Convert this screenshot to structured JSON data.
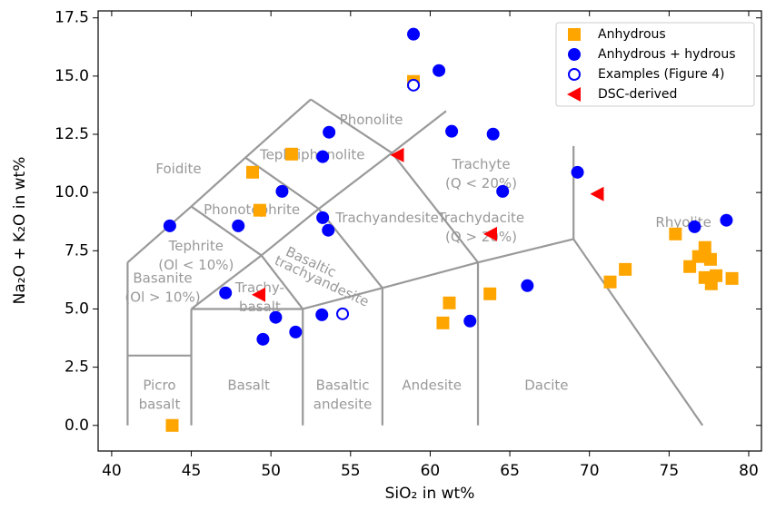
{
  "chart_data": {
    "type": "scatter",
    "x_label": "SiO₂ in wt%",
    "y_label": "Na₂O + K₂O in wt%",
    "xlim": [
      39.15,
      80.8
    ],
    "ylim": [
      -1.1,
      17.8
    ],
    "xticks": [
      40,
      45,
      50,
      55,
      60,
      65,
      70,
      75,
      80
    ],
    "yticks": [
      {
        "value": 0,
        "label": "0.0"
      },
      {
        "value": 2.5,
        "label": "2.5"
      },
      {
        "value": 5,
        "label": "5.0"
      },
      {
        "value": 7.5,
        "label": "7.5"
      },
      {
        "value": 10,
        "label": "10.0"
      },
      {
        "value": 12.5,
        "label": "12.5"
      },
      {
        "value": 15,
        "label": "15.0"
      },
      {
        "value": 17.5,
        "label": "17.5"
      }
    ],
    "legend": "upper right",
    "annotations": [
      [
        "Foidite"
      ],
      [
        "Phonolite"
      ],
      [
        "Tephriphonolite"
      ],
      [
        "Phonotephrite"
      ],
      [
        "Tephrite",
        "(Ol < 10%)"
      ],
      [
        "Basanite",
        "(Ol > 10%)"
      ],
      [
        "Trachy-",
        "basalt"
      ],
      [
        "Basaltic",
        "trachyandesite"
      ],
      [
        "Trachyandesite"
      ],
      [
        "Trachyte",
        "(Q < 20%)"
      ],
      [
        "Trachydacite",
        "(Q > 20%)"
      ],
      [
        "Rhyolite"
      ],
      [
        "Picro",
        "basalt"
      ],
      [
        "Basalt"
      ],
      [
        "Basaltic",
        "andesite"
      ],
      [
        "Andesite"
      ],
      [
        "Dacite"
      ]
    ],
    "series": [
      {
        "name": "Anhydrous",
        "color": "#ffa500",
        "marker": "square",
        "x": [
          43.8,
          48.85,
          49.3,
          51.3,
          58.95,
          60.8,
          61.2,
          63.75,
          71.3,
          72.25,
          75.4,
          76.3,
          76.85,
          77.25,
          77.25,
          77.6,
          77.65,
          77.95,
          78.95
        ],
        "y": [
          0.0,
          10.87,
          9.24,
          11.65,
          14.77,
          4.4,
          5.26,
          5.65,
          6.16,
          6.7,
          8.22,
          6.82,
          7.25,
          7.64,
          6.35,
          7.13,
          6.08,
          6.43,
          6.31
        ]
      },
      {
        "name": "Anhydrous + hydrous",
        "color": "#0000ff",
        "marker": "circle",
        "x": [
          58.95,
          60.55,
          61.35,
          63.95,
          53.65,
          53.25,
          50.7,
          47.95,
          43.65,
          53.25,
          53.6,
          47.15,
          50.3,
          49.5,
          51.55,
          53.2,
          62.5,
          66.1,
          64.55,
          69.25,
          76.6,
          78.6
        ],
        "y": [
          16.8,
          15.24,
          12.63,
          12.51,
          12.59,
          11.54,
          10.05,
          8.57,
          8.57,
          8.92,
          8.38,
          5.69,
          4.64,
          3.7,
          4.01,
          4.75,
          4.48,
          6.0,
          10.05,
          10.87,
          8.53,
          8.81
        ]
      },
      {
        "name": "Examples (Figure 4)",
        "color": "#0000ff",
        "marker": "open-circle",
        "x": [
          58.95,
          54.5
        ],
        "y": [
          14.61,
          4.79
        ]
      },
      {
        "name": "DSC-derived",
        "color": "#ff0000",
        "marker": "triangle-left",
        "x": [
          57.95,
          63.8,
          70.5,
          49.25
        ],
        "y": [
          11.61,
          8.22,
          9.94,
          5.61
        ]
      }
    ]
  }
}
